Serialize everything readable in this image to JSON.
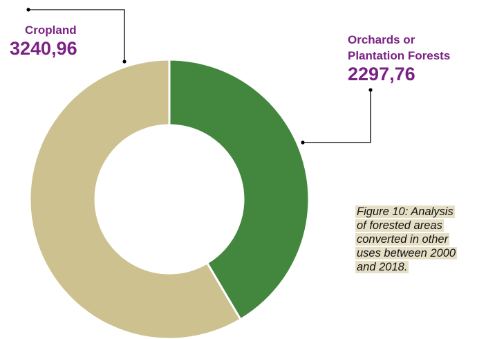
{
  "chart_data": {
    "type": "pie",
    "variant": "donut",
    "categories": [
      "Orchards or Plantation Forests",
      "Cropland"
    ],
    "labels": {
      "orchards": {
        "name_line1": "Orchards or",
        "name_line2": "Plantation Forests",
        "value_text": "2297,76"
      },
      "cropland": {
        "name": "Cropland",
        "value_text": "3240,96"
      }
    },
    "values": [
      2297.76,
      3240.96
    ],
    "colors": [
      "#43863d",
      "#cdc18f"
    ],
    "label_color": "#7a2283"
  },
  "caption": {
    "lines": [
      "Figure 10: Analysis",
      "of forested areas",
      "converted in other",
      "uses between 2000",
      "and 2018."
    ],
    "highlight_color": "#e6dfc6"
  }
}
